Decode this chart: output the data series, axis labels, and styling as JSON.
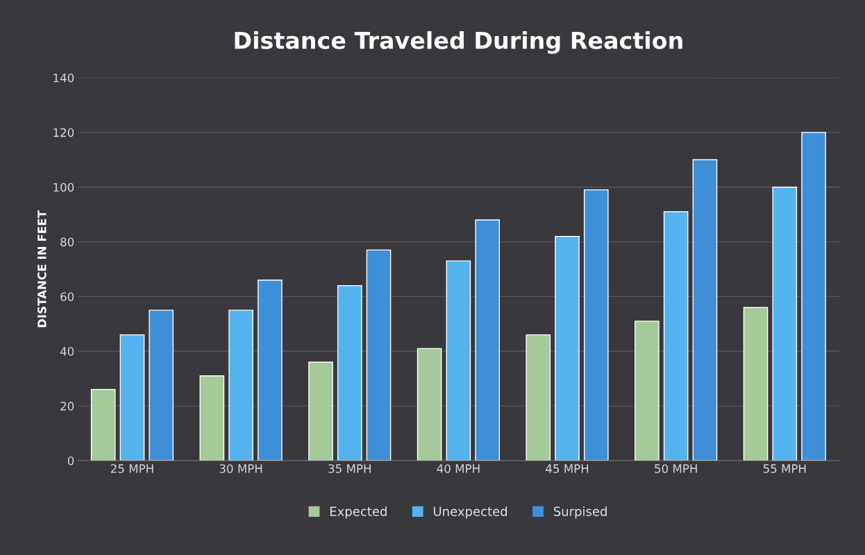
{
  "chart_data": {
    "type": "bar",
    "title": "Distance Traveled During Reaction",
    "ylabel": "DISTANCE IN FEET",
    "categories": [
      "25 MPH",
      "30 MPH",
      "35 MPH",
      "40 MPH",
      "45 MPH",
      "50 MPH",
      "55 MPH"
    ],
    "series": [
      {
        "name": "Expected",
        "color": "#a6c99a",
        "values": [
          26,
          31,
          36,
          41,
          46,
          51,
          56
        ]
      },
      {
        "name": "Unexpected",
        "color": "#55b4f0",
        "values": [
          46,
          55,
          64,
          73,
          82,
          91,
          100
        ]
      },
      {
        "name": "Surpised",
        "color": "#3f8fd8",
        "values": [
          55,
          66,
          77,
          88,
          99,
          110,
          120
        ]
      }
    ],
    "ylim": [
      0,
      140
    ],
    "yticks": [
      0,
      20,
      40,
      60,
      80,
      100,
      120,
      140
    ],
    "grid": "y",
    "legend": "bottom"
  }
}
